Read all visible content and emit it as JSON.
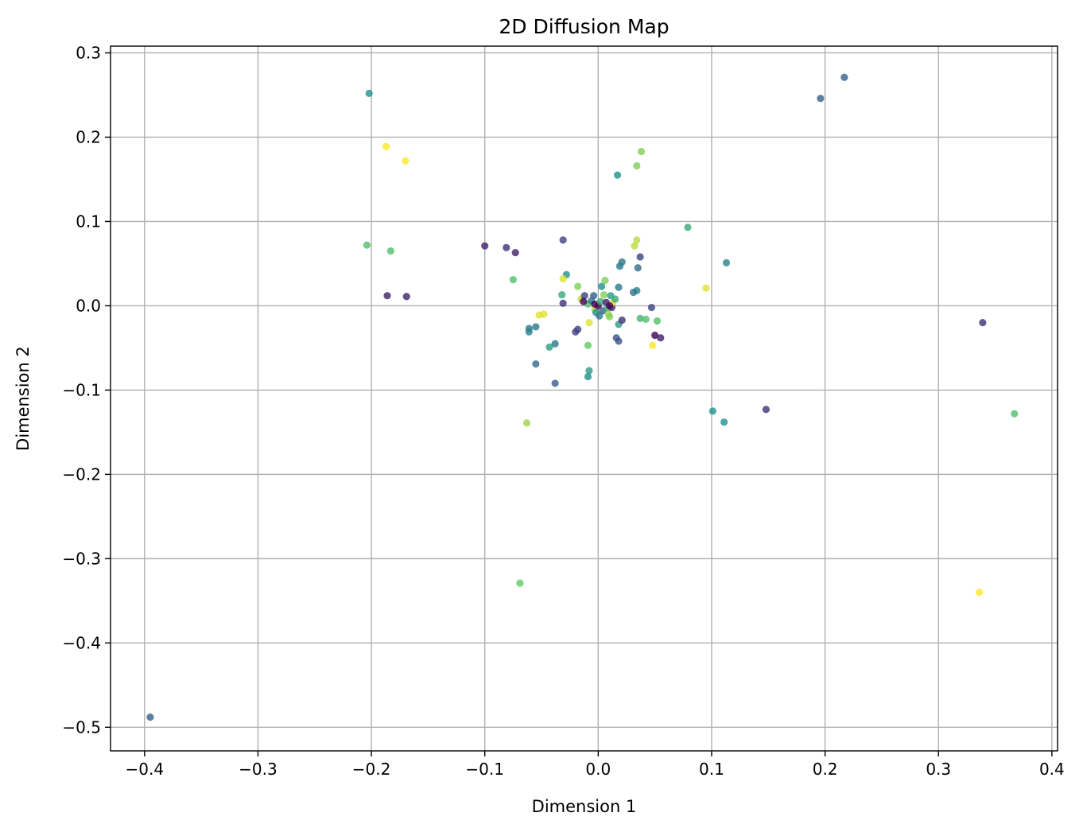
{
  "chart_data": {
    "type": "scatter",
    "title": "2D Diffusion Map",
    "xlabel": "Dimension 1",
    "ylabel": "Dimension 2",
    "xlim": [
      -0.43,
      0.405
    ],
    "ylim": [
      -0.528,
      0.308
    ],
    "xticks": [
      -0.4,
      -0.3,
      -0.2,
      -0.1,
      0.0,
      0.1,
      0.2,
      0.3,
      0.4
    ],
    "yticks": [
      0.3,
      0.2,
      0.1,
      0.0,
      -0.1,
      -0.2,
      -0.3,
      -0.4,
      -0.5
    ],
    "xtick_labels": [
      "−0.4",
      "−0.3",
      "−0.2",
      "−0.1",
      "0.0",
      "0.1",
      "0.2",
      "0.3",
      "0.4"
    ],
    "ytick_labels": [
      "0.3",
      "0.2",
      "0.1",
      "0.0",
      "−0.1",
      "−0.2",
      "−0.3",
      "−0.4",
      "−0.5"
    ],
    "grid": true,
    "legend": "none",
    "colormap": "viridis",
    "marker_alpha": 0.8,
    "points": [
      {
        "x": -0.395,
        "y": -0.488,
        "c": 0.3
      },
      {
        "x": 0.196,
        "y": 0.246,
        "c": 0.3
      },
      {
        "x": 0.217,
        "y": 0.271,
        "c": 0.3
      },
      {
        "x": -0.202,
        "y": 0.252,
        "c": 0.5
      },
      {
        "x": -0.187,
        "y": 0.189,
        "c": 1.0
      },
      {
        "x": -0.17,
        "y": 0.172,
        "c": 1.0
      },
      {
        "x": -0.204,
        "y": 0.072,
        "c": 0.7
      },
      {
        "x": -0.183,
        "y": 0.065,
        "c": 0.7
      },
      {
        "x": -0.186,
        "y": 0.012,
        "c": 0.1
      },
      {
        "x": -0.169,
        "y": 0.011,
        "c": 0.1
      },
      {
        "x": -0.1,
        "y": 0.071,
        "c": 0.1
      },
      {
        "x": -0.081,
        "y": 0.069,
        "c": 0.15
      },
      {
        "x": -0.073,
        "y": 0.063,
        "c": 0.1
      },
      {
        "x": -0.075,
        "y": 0.031,
        "c": 0.7
      },
      {
        "x": -0.031,
        "y": 0.078,
        "c": 0.2
      },
      {
        "x": -0.028,
        "y": 0.037,
        "c": 0.5
      },
      {
        "x": -0.032,
        "y": 0.013,
        "c": 0.6
      },
      {
        "x": -0.031,
        "y": 0.032,
        "c": 0.95
      },
      {
        "x": -0.031,
        "y": 0.003,
        "c": 0.15
      },
      {
        "x": -0.018,
        "y": 0.023,
        "c": 0.8
      },
      {
        "x": -0.015,
        "y": 0.008,
        "c": 0.9
      },
      {
        "x": -0.012,
        "y": 0.012,
        "c": 0.2
      },
      {
        "x": -0.009,
        "y": 0.002,
        "c": 0.7
      },
      {
        "x": -0.006,
        "y": 0.006,
        "c": 0.4
      },
      {
        "x": -0.004,
        "y": 0.012,
        "c": 0.3
      },
      {
        "x": -0.003,
        "y": -0.004,
        "c": 0.9
      },
      {
        "x": -0.003,
        "y": 0.002,
        "c": 0.0
      },
      {
        "x": -0.002,
        "y": -0.008,
        "c": 0.5
      },
      {
        "x": 0.0,
        "y": 0.0,
        "c": 0.0
      },
      {
        "x": 0.001,
        "y": -0.012,
        "c": 0.4
      },
      {
        "x": 0.002,
        "y": 0.005,
        "c": 0.6
      },
      {
        "x": 0.003,
        "y": 0.023,
        "c": 0.5
      },
      {
        "x": 0.004,
        "y": -0.006,
        "c": 0.3
      },
      {
        "x": 0.005,
        "y": 0.013,
        "c": 0.8
      },
      {
        "x": 0.006,
        "y": 0.03,
        "c": 0.8
      },
      {
        "x": 0.007,
        "y": 0.004,
        "c": 0.1
      },
      {
        "x": 0.008,
        "y": -0.003,
        "c": 0.6
      },
      {
        "x": 0.009,
        "y": -0.01,
        "c": 0.85
      },
      {
        "x": 0.01,
        "y": -0.013,
        "c": 0.8
      },
      {
        "x": 0.011,
        "y": 0.012,
        "c": 0.55
      },
      {
        "x": 0.012,
        "y": -0.002,
        "c": 0.1
      },
      {
        "x": 0.013,
        "y": 0.004,
        "c": 0.95
      },
      {
        "x": 0.015,
        "y": 0.008,
        "c": 0.6
      },
      {
        "x": 0.01,
        "y": 0.0,
        "c": 0.0
      },
      {
        "x": -0.008,
        "y": -0.02,
        "c": 0.95
      },
      {
        "x": -0.013,
        "y": 0.005,
        "c": 0.0
      },
      {
        "x": -0.009,
        "y": -0.047,
        "c": 0.75
      },
      {
        "x": -0.008,
        "y": -0.077,
        "c": 0.55
      },
      {
        "x": -0.009,
        "y": -0.084,
        "c": 0.5
      },
      {
        "x": -0.02,
        "y": -0.031,
        "c": 0.2
      },
      {
        "x": -0.018,
        "y": -0.028,
        "c": 0.2
      },
      {
        "x": -0.048,
        "y": -0.01,
        "c": 0.95
      },
      {
        "x": -0.052,
        "y": -0.011,
        "c": 0.95
      },
      {
        "x": -0.055,
        "y": -0.025,
        "c": 0.4
      },
      {
        "x": -0.061,
        "y": -0.027,
        "c": 0.4
      },
      {
        "x": -0.061,
        "y": -0.031,
        "c": 0.45
      },
      {
        "x": -0.038,
        "y": -0.045,
        "c": 0.4
      },
      {
        "x": -0.043,
        "y": -0.049,
        "c": 0.55
      },
      {
        "x": -0.055,
        "y": -0.069,
        "c": 0.35
      },
      {
        "x": -0.038,
        "y": -0.092,
        "c": 0.3
      },
      {
        "x": -0.063,
        "y": -0.139,
        "c": 0.85
      },
      {
        "x": -0.069,
        "y": -0.329,
        "c": 0.75
      },
      {
        "x": 0.017,
        "y": 0.155,
        "c": 0.5
      },
      {
        "x": 0.034,
        "y": 0.166,
        "c": 0.8
      },
      {
        "x": 0.038,
        "y": 0.183,
        "c": 0.8
      },
      {
        "x": 0.034,
        "y": 0.078,
        "c": 0.9
      },
      {
        "x": 0.032,
        "y": 0.071,
        "c": 0.9
      },
      {
        "x": 0.037,
        "y": 0.058,
        "c": 0.2
      },
      {
        "x": 0.021,
        "y": 0.052,
        "c": 0.4
      },
      {
        "x": 0.019,
        "y": 0.047,
        "c": 0.4
      },
      {
        "x": 0.035,
        "y": 0.045,
        "c": 0.35
      },
      {
        "x": 0.034,
        "y": 0.018,
        "c": 0.45
      },
      {
        "x": 0.031,
        "y": 0.016,
        "c": 0.4
      },
      {
        "x": 0.018,
        "y": 0.022,
        "c": 0.4
      },
      {
        "x": 0.079,
        "y": 0.093,
        "c": 0.6
      },
      {
        "x": 0.113,
        "y": 0.051,
        "c": 0.45
      },
      {
        "x": 0.095,
        "y": 0.021,
        "c": 0.95
      },
      {
        "x": 0.047,
        "y": -0.002,
        "c": 0.2
      },
      {
        "x": 0.037,
        "y": -0.015,
        "c": 0.65
      },
      {
        "x": 0.042,
        "y": -0.016,
        "c": 0.7
      },
      {
        "x": 0.052,
        "y": -0.018,
        "c": 0.7
      },
      {
        "x": 0.018,
        "y": -0.022,
        "c": 0.55
      },
      {
        "x": 0.021,
        "y": -0.017,
        "c": 0.15
      },
      {
        "x": 0.016,
        "y": -0.038,
        "c": 0.25
      },
      {
        "x": 0.018,
        "y": -0.042,
        "c": 0.25
      },
      {
        "x": 0.05,
        "y": -0.035,
        "c": 0.0
      },
      {
        "x": 0.055,
        "y": -0.038,
        "c": 0.1
      },
      {
        "x": 0.048,
        "y": -0.047,
        "c": 1.0
      },
      {
        "x": 0.148,
        "y": -0.123,
        "c": 0.15
      },
      {
        "x": 0.101,
        "y": -0.125,
        "c": 0.5
      },
      {
        "x": 0.111,
        "y": -0.138,
        "c": 0.5
      },
      {
        "x": 0.339,
        "y": -0.02,
        "c": 0.15
      },
      {
        "x": 0.367,
        "y": -0.128,
        "c": 0.7
      },
      {
        "x": 0.336,
        "y": -0.34,
        "c": 1.0
      }
    ]
  }
}
